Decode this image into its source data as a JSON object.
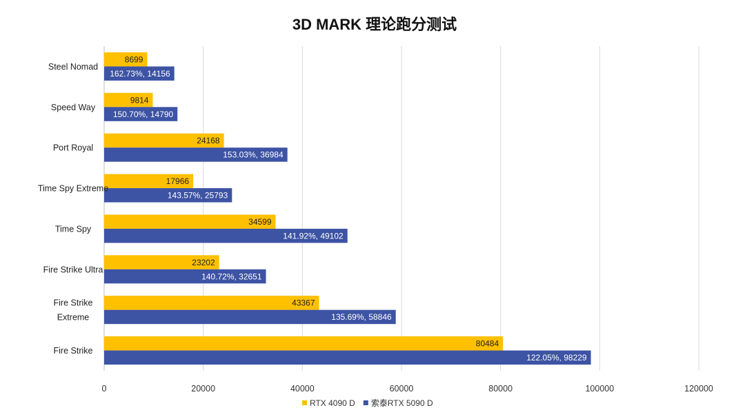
{
  "chart_data": {
    "type": "bar",
    "orientation": "horizontal",
    "title": "3D MARK 理论跑分测试",
    "xlabel": "",
    "ylabel": "",
    "xlim": [
      0,
      120000
    ],
    "x_ticks": [
      0,
      20000,
      40000,
      60000,
      80000,
      100000,
      120000
    ],
    "grid": true,
    "legend_position": "bottom",
    "categories": [
      [
        "Steel Nomad"
      ],
      [
        "Speed Way"
      ],
      [
        "Port Royal"
      ],
      [
        "Time Spy Extreme"
      ],
      [
        "Time Spy"
      ],
      [
        "Fire Strike Ultra"
      ],
      [
        "Fire Strike",
        "Extreme"
      ],
      [
        "Fire Strike"
      ]
    ],
    "series": [
      {
        "name": "RTX 4090 D",
        "color": "#FFC000",
        "label_color": "#222222",
        "values": [
          8699,
          9814,
          24168,
          17966,
          34599,
          23202,
          43367,
          80484
        ],
        "labels": [
          "8699",
          "9814",
          "24168",
          "17966",
          "34599",
          "23202",
          "43367",
          "80484"
        ]
      },
      {
        "name": "索泰RTX 5090 D",
        "color": "#3D53A4",
        "label_color": "#ffffff",
        "values": [
          14156,
          14790,
          36984,
          25793,
          49102,
          32651,
          58846,
          98229
        ],
        "labels": [
          "162.73%, 14156",
          "150.70%, 14790",
          "153.03%, 36984",
          "143.57%, 25793",
          "141.92%, 49102",
          "140.72%, 32651",
          "135.69%, 58846",
          "122.05%, 98229"
        ]
      }
    ]
  }
}
